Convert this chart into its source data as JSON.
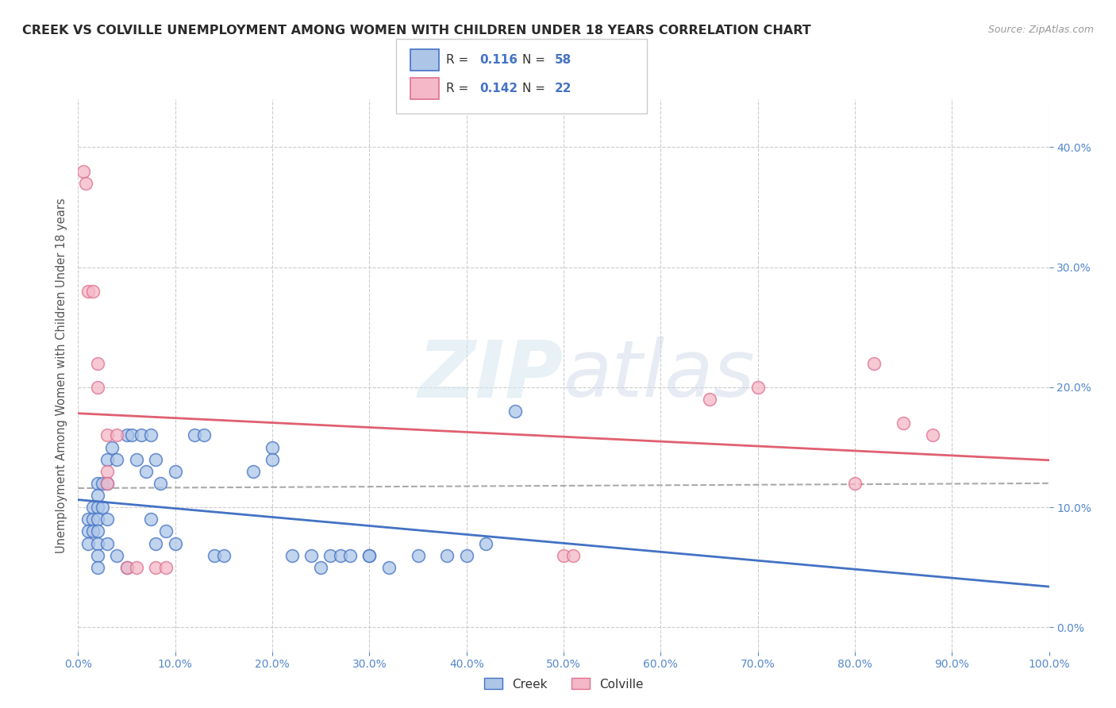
{
  "title": "CREEK VS COLVILLE UNEMPLOYMENT AMONG WOMEN WITH CHILDREN UNDER 18 YEARS CORRELATION CHART",
  "source": "Source: ZipAtlas.com",
  "ylabel": "Unemployment Among Women with Children Under 18 years",
  "watermark": "ZIPatlas",
  "legend_creek_R": "0.116",
  "legend_creek_N": "58",
  "legend_colville_R": "0.142",
  "legend_colville_N": "22",
  "xlim": [
    0,
    1.0
  ],
  "ylim": [
    -0.02,
    0.44
  ],
  "xticks": [
    0.0,
    0.1,
    0.2,
    0.3,
    0.4,
    0.5,
    0.6,
    0.7,
    0.8,
    0.9,
    1.0
  ],
  "yticks": [
    0.0,
    0.1,
    0.2,
    0.3,
    0.4
  ],
  "creek_color": "#adc6e8",
  "colville_color": "#f4b8c8",
  "creek_edge_color": "#4472c4",
  "colville_edge_color": "#e07090",
  "creek_line_color": "#4472c4",
  "colville_line_color": "#e06070",
  "trendline_color": "#aaaaaa",
  "background_color": "#ffffff",
  "grid_color": "#cccccc",
  "tick_color": "#5588cc",
  "creek_x": [
    0.01,
    0.01,
    0.01,
    0.015,
    0.015,
    0.015,
    0.02,
    0.02,
    0.02,
    0.02,
    0.02,
    0.02,
    0.02,
    0.02,
    0.025,
    0.025,
    0.03,
    0.03,
    0.03,
    0.03,
    0.035,
    0.04,
    0.04,
    0.05,
    0.05,
    0.055,
    0.06,
    0.065,
    0.07,
    0.075,
    0.075,
    0.08,
    0.08,
    0.085,
    0.09,
    0.1,
    0.1,
    0.12,
    0.13,
    0.14,
    0.15,
    0.18,
    0.2,
    0.2,
    0.22,
    0.24,
    0.25,
    0.26,
    0.27,
    0.28,
    0.3,
    0.3,
    0.32,
    0.35,
    0.38,
    0.4,
    0.42,
    0.45
  ],
  "creek_y": [
    0.07,
    0.09,
    0.08,
    0.1,
    0.09,
    0.08,
    0.12,
    0.11,
    0.1,
    0.09,
    0.08,
    0.07,
    0.06,
    0.05,
    0.12,
    0.1,
    0.14,
    0.12,
    0.09,
    0.07,
    0.15,
    0.14,
    0.06,
    0.16,
    0.05,
    0.16,
    0.14,
    0.16,
    0.13,
    0.16,
    0.09,
    0.14,
    0.07,
    0.12,
    0.08,
    0.13,
    0.07,
    0.16,
    0.16,
    0.06,
    0.06,
    0.13,
    0.15,
    0.14,
    0.06,
    0.06,
    0.05,
    0.06,
    0.06,
    0.06,
    0.06,
    0.06,
    0.05,
    0.06,
    0.06,
    0.06,
    0.07,
    0.18
  ],
  "colville_x": [
    0.005,
    0.008,
    0.01,
    0.015,
    0.02,
    0.02,
    0.03,
    0.03,
    0.03,
    0.04,
    0.05,
    0.06,
    0.08,
    0.09,
    0.5,
    0.51,
    0.65,
    0.7,
    0.8,
    0.82,
    0.85,
    0.88
  ],
  "colville_y": [
    0.38,
    0.37,
    0.28,
    0.28,
    0.22,
    0.2,
    0.13,
    0.12,
    0.16,
    0.16,
    0.05,
    0.05,
    0.05,
    0.05,
    0.06,
    0.06,
    0.19,
    0.2,
    0.12,
    0.22,
    0.17,
    0.16
  ]
}
